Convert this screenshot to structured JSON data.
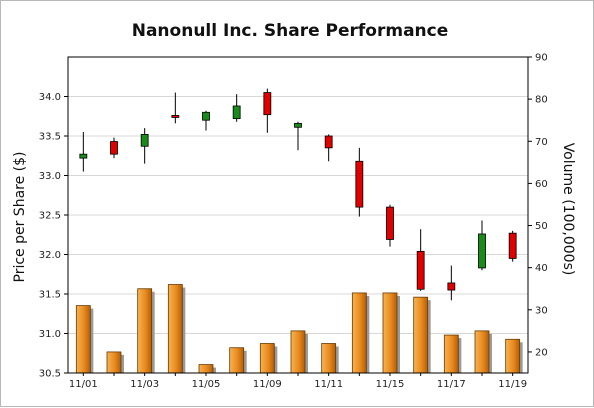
{
  "chart_data": {
    "type": "candlestick+bar",
    "title": "Nanonull Inc. Share Performance",
    "ylabel_left": "Price per Share ($)",
    "ylabel_right": "Volume (100,000s)",
    "xlabel": "",
    "ylim_left": [
      30.5,
      34.5
    ],
    "ylim_right": [
      15,
      90
    ],
    "yticks_left": [
      "30.5",
      "31.0",
      "31.5",
      "32.0",
      "32.5",
      "33.0",
      "33.5",
      "34.0"
    ],
    "yticks_right": [
      "20",
      "30",
      "40",
      "50",
      "60",
      "70",
      "80",
      "90"
    ],
    "grid": "horizontal",
    "x_tick_labels": [
      "11/01",
      "11/03",
      "11/05",
      "11/09",
      "11/11",
      "11/15",
      "11/17",
      "11/19"
    ],
    "colors": {
      "up": "#1a8a1a",
      "down": "#e00000",
      "volume": "#e88a1e",
      "volume_edge": "#6a3a00",
      "grid": "#d8d8d8"
    },
    "series": [
      {
        "name": "Price",
        "candles": [
          {
            "date": "11/01",
            "open": 33.22,
            "high": 33.55,
            "low": 33.05,
            "close": 33.27
          },
          {
            "date": "11/02",
            "open": 33.43,
            "high": 33.48,
            "low": 33.22,
            "close": 33.27
          },
          {
            "date": "11/03",
            "open": 33.37,
            "high": 33.6,
            "low": 33.15,
            "close": 33.52
          },
          {
            "date": "11/04",
            "open": 33.76,
            "high": 34.05,
            "low": 33.66,
            "close": 33.74
          },
          {
            "date": "11/05",
            "open": 33.7,
            "high": 33.82,
            "low": 33.57,
            "close": 33.8
          },
          {
            "date": "11/08",
            "open": 33.72,
            "high": 34.03,
            "low": 33.68,
            "close": 33.88
          },
          {
            "date": "11/09",
            "open": 34.05,
            "high": 34.1,
            "low": 33.54,
            "close": 33.77
          },
          {
            "date": "11/10",
            "open": 33.61,
            "high": 33.68,
            "low": 33.32,
            "close": 33.66
          },
          {
            "date": "11/11",
            "open": 33.5,
            "high": 33.52,
            "low": 33.18,
            "close": 33.35
          },
          {
            "date": "11/12",
            "open": 33.18,
            "high": 33.35,
            "low": 32.48,
            "close": 32.6
          },
          {
            "date": "11/15",
            "open": 32.6,
            "high": 32.63,
            "low": 32.1,
            "close": 32.19
          },
          {
            "date": "11/16",
            "open": 32.04,
            "high": 32.32,
            "low": 31.54,
            "close": 31.56
          },
          {
            "date": "11/17",
            "open": 31.64,
            "high": 31.86,
            "low": 31.42,
            "close": 31.55
          },
          {
            "date": "11/18",
            "open": 31.83,
            "high": 32.43,
            "low": 31.8,
            "close": 32.26
          },
          {
            "date": "11/19",
            "open": 32.27,
            "high": 32.3,
            "low": 31.91,
            "close": 31.95
          }
        ]
      },
      {
        "name": "Volume",
        "values": [
          31,
          20,
          35,
          36,
          17,
          21,
          22,
          25,
          22,
          34,
          34,
          33,
          24,
          25,
          23
        ]
      }
    ]
  }
}
